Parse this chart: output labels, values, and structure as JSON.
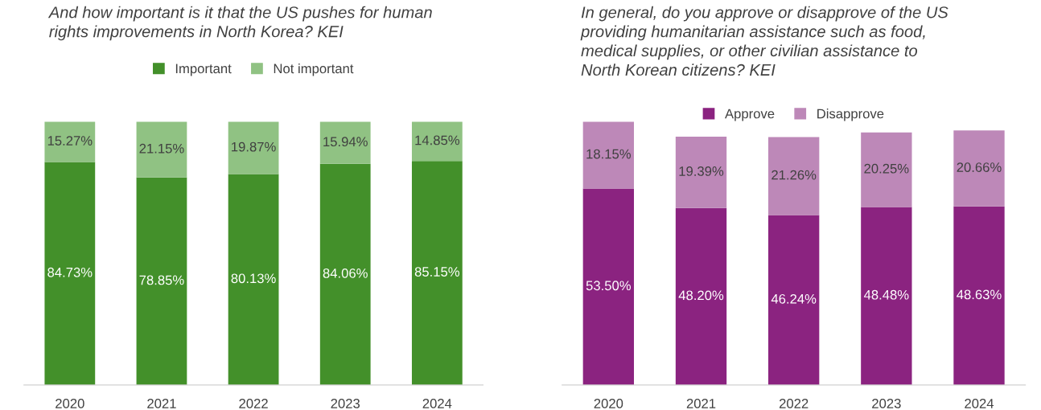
{
  "chart_data": [
    {
      "type": "bar",
      "title": "And how important is it that the US pushes for human\nrights improvements in North Korea? KEI",
      "categories": [
        "2020",
        "2021",
        "2022",
        "2023",
        "2024"
      ],
      "stacked": true,
      "legend": "top",
      "tick_labels": "x",
      "series": [
        {
          "name": "Important",
          "color": "#43902a",
          "values": [
            84.73,
            78.85,
            80.13,
            84.06,
            85.15
          ],
          "value_labels": [
            "84.73%",
            "78.85%",
            "80.13%",
            "84.06%",
            "85.15%"
          ]
        },
        {
          "name": "Not important",
          "color": "#90c283",
          "values": [
            15.27,
            21.15,
            19.87,
            15.94,
            14.85
          ],
          "value_labels": [
            "15.27%",
            "21.15%",
            "19.87%",
            "15.94%",
            "14.85%"
          ]
        }
      ]
    },
    {
      "type": "bar",
      "title": "In general, do you approve or disapprove of the US\nproviding humanitarian assistance such as food,\nmedical supplies, or other civilian assistance to\nNorth Korean citizens? KEI",
      "categories": [
        "2020",
        "2021",
        "2022",
        "2023",
        "2024"
      ],
      "stacked": true,
      "legend": "top",
      "tick_labels": "x",
      "series": [
        {
          "name": "Approve",
          "color": "#8b2380",
          "values": [
            53.5,
            48.2,
            46.24,
            48.48,
            48.63
          ],
          "value_labels": [
            "53.50%",
            "48.20%",
            "46.24%",
            "48.48%",
            "48.63%"
          ]
        },
        {
          "name": "Disapprove",
          "color": "#bd88b8",
          "values": [
            18.15,
            19.39,
            21.26,
            20.25,
            20.66
          ],
          "value_labels": [
            "18.15%",
            "19.39%",
            "21.26%",
            "20.25%",
            "20.66%"
          ]
        }
      ]
    }
  ]
}
